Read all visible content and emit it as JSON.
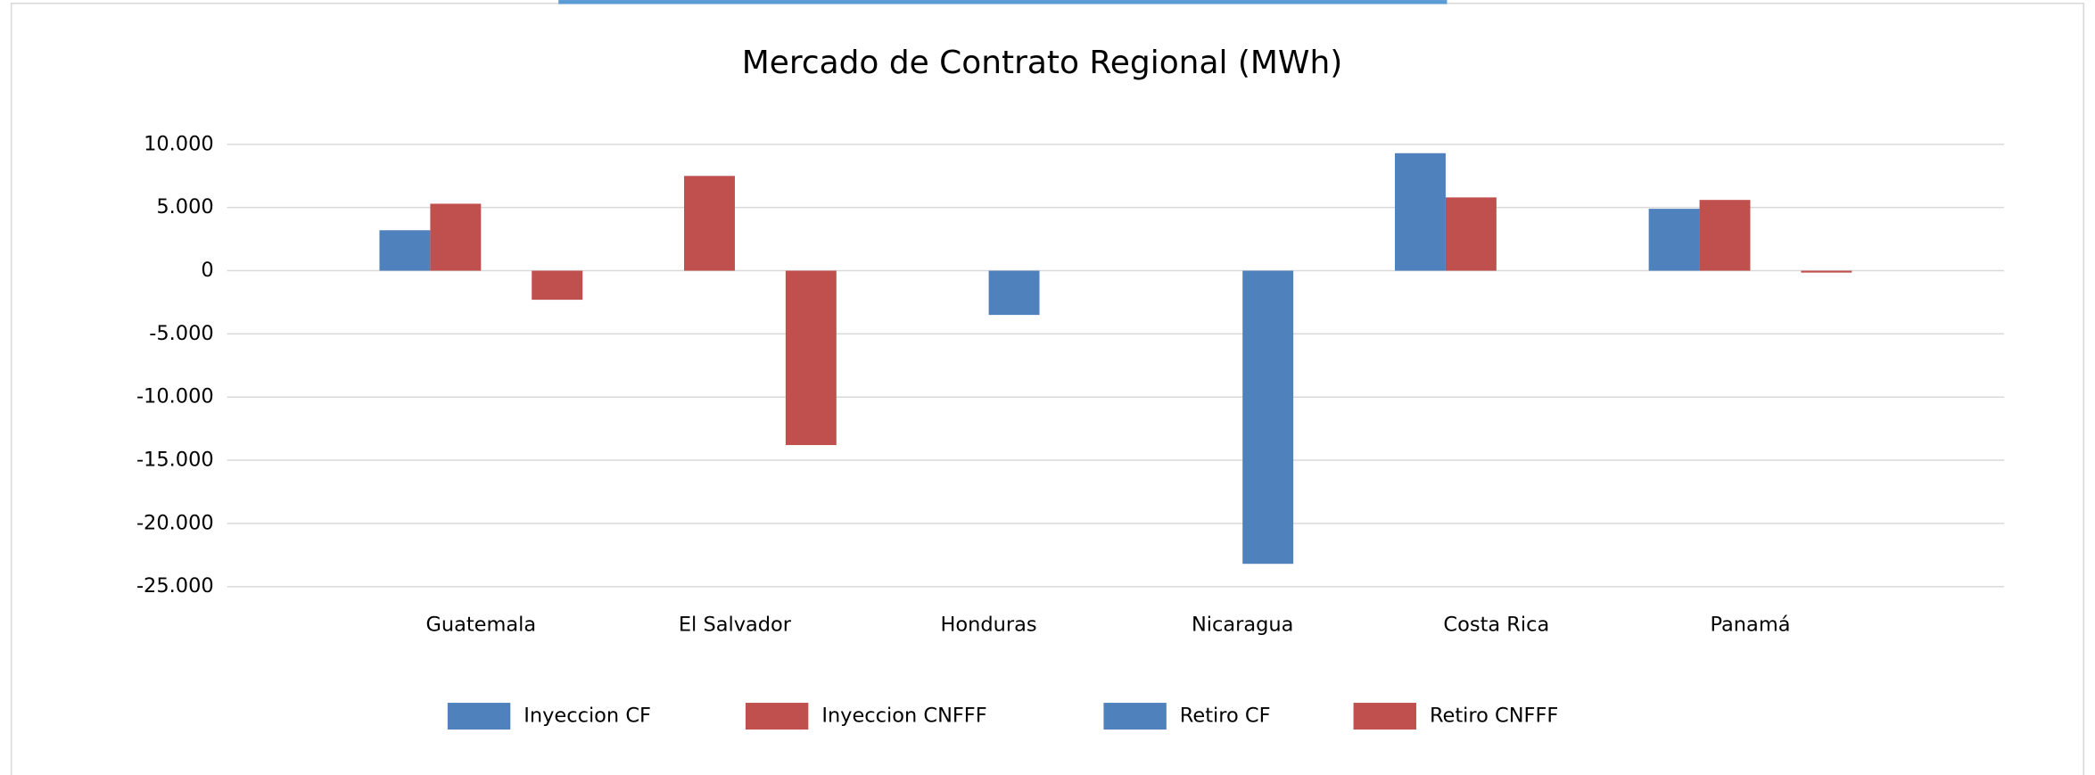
{
  "chart_data": {
    "type": "bar",
    "title": "Mercado de Contrato Regional (MWh)",
    "categories": [
      "Guatemala",
      "El Salvador",
      "Honduras",
      "Nicaragua",
      "Costa Rica",
      "Panamá"
    ],
    "series": [
      {
        "name": "Inyeccion CF",
        "color": "#4f81bd",
        "values": [
          3200,
          null,
          null,
          null,
          9300,
          4900
        ]
      },
      {
        "name": "Inyeccion CNFFF",
        "color": "#c0504d",
        "values": [
          5300,
          7500,
          null,
          null,
          5800,
          5600
        ]
      },
      {
        "name": "Retiro CF",
        "color": "#4f81bd",
        "values": [
          null,
          null,
          -3500,
          -23200,
          null,
          null
        ]
      },
      {
        "name": "Retiro CNFFF",
        "color": "#c0504d",
        "values": [
          -2300,
          -13800,
          null,
          null,
          null,
          -150
        ]
      }
    ],
    "ylim": [
      -25000,
      10000
    ],
    "yticks": [
      {
        "value": -25000,
        "label": "-25.000"
      },
      {
        "value": -20000,
        "label": "-20.000"
      },
      {
        "value": -15000,
        "label": "-15.000"
      },
      {
        "value": -10000,
        "label": "-10.000"
      },
      {
        "value": -5000,
        "label": "-5.000"
      },
      0,
      {
        "value": 5000,
        "label": "5.000"
      },
      {
        "value": 10000,
        "label": "10.000"
      }
    ],
    "grid": true,
    "legend": "bottom"
  }
}
